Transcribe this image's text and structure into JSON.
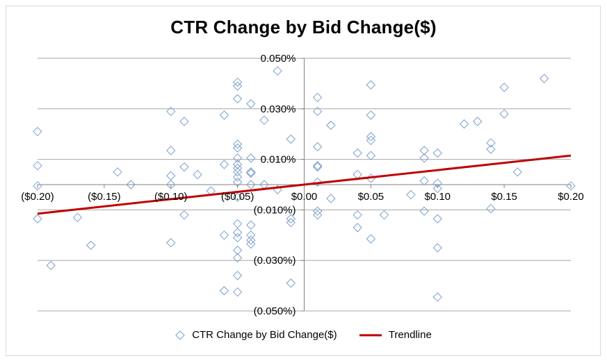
{
  "chart_data": {
    "type": "scatter",
    "title": "CTR Change by Bid Change($)",
    "xlabel": "",
    "ylabel": "",
    "xlim": [
      -0.2,
      0.2
    ],
    "ylim": [
      -0.05,
      0.05
    ],
    "x_ticks": [
      -0.2,
      -0.15,
      -0.1,
      -0.05,
      0.0,
      0.05,
      0.1,
      0.15,
      0.2
    ],
    "x_tick_labels": [
      "($0.20)",
      "($0.15)",
      "($0.10)",
      "($0.05)",
      "$0.00",
      "$0.05",
      "$0.10",
      "$0.15",
      "$0.20"
    ],
    "y_ticks": [
      0.05,
      0.03,
      0.01,
      -0.01,
      -0.03,
      -0.05
    ],
    "y_tick_labels": [
      "0.050%",
      "0.030%",
      "0.010%",
      "(0.010%)",
      "(0.030%)",
      "(0.050%)"
    ],
    "grid": "horizontal",
    "legend_position": "bottom",
    "colors": {
      "points": "#7b9fcb",
      "trendline": "#c00000",
      "grid": "#a6a6a6",
      "axis": "#808080"
    },
    "series": [
      {
        "name": "CTR Change by Bid Change($)",
        "marker": "diamond-open",
        "points": [
          [
            -0.2,
            0.021
          ],
          [
            -0.2,
            0.0075
          ],
          [
            -0.2,
            -0.0005
          ],
          [
            -0.2,
            -0.0135
          ],
          [
            -0.19,
            -0.032
          ],
          [
            -0.17,
            -0.013
          ],
          [
            -0.16,
            -0.024
          ],
          [
            -0.14,
            0.005
          ],
          [
            -0.13,
            0.0
          ],
          [
            -0.1,
            0.029
          ],
          [
            -0.1,
            0.0135
          ],
          [
            -0.1,
            0.0035
          ],
          [
            -0.1,
            0.0
          ],
          [
            -0.1,
            -0.023
          ],
          [
            -0.09,
            0.025
          ],
          [
            -0.09,
            0.007
          ],
          [
            -0.09,
            -0.012
          ],
          [
            -0.08,
            0.004
          ],
          [
            -0.07,
            -0.0025
          ],
          [
            -0.06,
            0.0275
          ],
          [
            -0.06,
            0.008
          ],
          [
            -0.06,
            -0.02
          ],
          [
            -0.06,
            -0.042
          ],
          [
            -0.05,
            0.0405
          ],
          [
            -0.05,
            0.039
          ],
          [
            -0.05,
            0.034
          ],
          [
            -0.05,
            0.016
          ],
          [
            -0.05,
            0.0145
          ],
          [
            -0.05,
            0.0105
          ],
          [
            -0.05,
            0.008
          ],
          [
            -0.05,
            0.0065
          ],
          [
            -0.05,
            0.005
          ],
          [
            -0.05,
            0.003
          ],
          [
            -0.05,
            0.001
          ],
          [
            -0.05,
            -0.005
          ],
          [
            -0.05,
            -0.0155
          ],
          [
            -0.05,
            -0.019
          ],
          [
            -0.05,
            -0.021
          ],
          [
            -0.05,
            -0.026
          ],
          [
            -0.05,
            -0.029
          ],
          [
            -0.05,
            -0.036
          ],
          [
            -0.05,
            -0.0425
          ],
          [
            -0.04,
            0.032
          ],
          [
            -0.04,
            0.0105
          ],
          [
            -0.04,
            0.005
          ],
          [
            -0.04,
            0.0045
          ],
          [
            -0.04,
            0.0
          ],
          [
            -0.04,
            -0.016
          ],
          [
            -0.04,
            -0.02
          ],
          [
            -0.04,
            -0.022
          ],
          [
            -0.04,
            -0.0235
          ],
          [
            -0.03,
            0.0255
          ],
          [
            -0.03,
            0.0
          ],
          [
            -0.02,
            0.045
          ],
          [
            -0.02,
            -0.002
          ],
          [
            -0.01,
            0.018
          ],
          [
            -0.01,
            -0.0135
          ],
          [
            -0.01,
            -0.015
          ],
          [
            -0.01,
            -0.039
          ],
          [
            0.01,
            0.0345
          ],
          [
            0.01,
            0.029
          ],
          [
            0.01,
            0.015
          ],
          [
            0.01,
            0.0075
          ],
          [
            0.01,
            0.007
          ],
          [
            0.01,
            0.001
          ],
          [
            0.01,
            -0.0105
          ],
          [
            0.01,
            -0.012
          ],
          [
            0.02,
            0.0235
          ],
          [
            0.02,
            -0.0055
          ],
          [
            0.04,
            0.0125
          ],
          [
            0.04,
            0.004
          ],
          [
            0.04,
            -0.012
          ],
          [
            0.04,
            -0.017
          ],
          [
            0.05,
            0.0395
          ],
          [
            0.05,
            0.0275
          ],
          [
            0.05,
            0.019
          ],
          [
            0.05,
            0.0175
          ],
          [
            0.05,
            0.0115
          ],
          [
            0.05,
            0.0025
          ],
          [
            0.05,
            -0.0215
          ],
          [
            0.06,
            -0.012
          ],
          [
            0.08,
            -0.004
          ],
          [
            0.09,
            0.0135
          ],
          [
            0.09,
            0.0105
          ],
          [
            0.09,
            0.0015
          ],
          [
            0.09,
            -0.0105
          ],
          [
            0.1,
            0.0125
          ],
          [
            0.1,
            0.0005
          ],
          [
            0.1,
            -0.0015
          ],
          [
            0.1,
            -0.0135
          ],
          [
            0.1,
            -0.025
          ],
          [
            0.1,
            -0.0445
          ],
          [
            0.12,
            0.024
          ],
          [
            0.13,
            0.025
          ],
          [
            0.14,
            0.0165
          ],
          [
            0.14,
            0.014
          ],
          [
            0.14,
            -0.0095
          ],
          [
            0.15,
            0.0385
          ],
          [
            0.15,
            0.028
          ],
          [
            0.16,
            0.005
          ],
          [
            0.18,
            0.042
          ],
          [
            0.2,
            -0.0005
          ]
        ]
      },
      {
        "name": "Trendline",
        "type": "line",
        "points": [
          [
            -0.2,
            -0.0115
          ],
          [
            0.2,
            0.0115
          ]
        ]
      }
    ]
  },
  "legend": {
    "scatter_label": "CTR Change by Bid Change($)",
    "trend_label": "Trendline"
  }
}
